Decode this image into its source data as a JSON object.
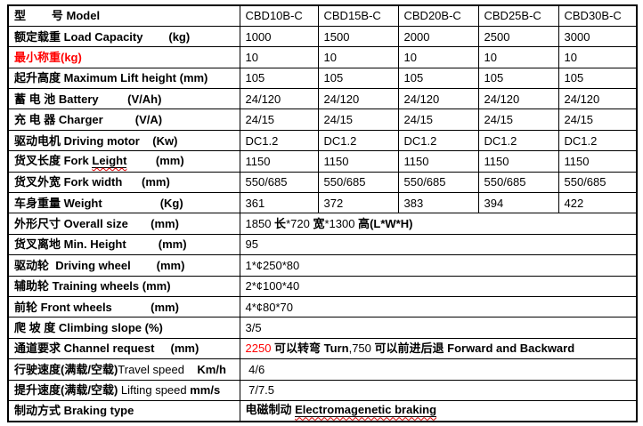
{
  "colors": {
    "accent_red": "#ff0000",
    "squiggle_red": "#e00000",
    "border": "#000000",
    "text": "#000000",
    "background": "#ffffff"
  },
  "table": {
    "rows": [
      {
        "label": [
          {
            "t": "型        号 Model",
            "b": 1
          }
        ],
        "values": [
          "CBD10B-C",
          "CBD15B-C",
          "CBD20B-C",
          "CBD25B-C",
          "CBD30B-C"
        ]
      },
      {
        "label": [
          {
            "t": "额定载重 Load Capacity        (kg)",
            "b": 1
          }
        ],
        "values": [
          "1000",
          "1500",
          "2000",
          "2500",
          "3000"
        ]
      },
      {
        "label": [
          {
            "t": "最小称重(kg)",
            "b": 1,
            "c": "red"
          }
        ],
        "values": [
          "10",
          "10",
          "10",
          "10",
          "10"
        ]
      },
      {
        "label": [
          {
            "t": "起升高度 Maximum Lift height (mm)",
            "b": 1
          }
        ],
        "values": [
          "105",
          "105",
          "105",
          "105",
          "105"
        ]
      },
      {
        "label": [
          {
            "t": "蓄 电 池 Battery         (V/Ah)",
            "b": 1
          }
        ],
        "values": [
          "24/120",
          "24/120",
          "24/120",
          "24/120",
          "24/120"
        ]
      },
      {
        "label": [
          {
            "t": "充 电 器 Charger          (V/A)",
            "b": 1
          }
        ],
        "values": [
          "24/15",
          "24/15",
          "24/15",
          "24/15",
          "24/15"
        ]
      },
      {
        "label": [
          {
            "t": "驱动电机 Driving motor    (Kw)",
            "b": 1
          }
        ],
        "values": [
          "DC1.2",
          "DC1.2",
          "DC1.2",
          "DC1.2",
          "DC1.2"
        ]
      },
      {
        "label": [
          {
            "t": "货叉长度 Fork ",
            "b": 1
          },
          {
            "t": "Leight",
            "b": 1,
            "u": 1
          },
          {
            "t": "         (mm)",
            "b": 1
          }
        ],
        "values": [
          "1150",
          "1150",
          "1150",
          "1150",
          "1150"
        ]
      },
      {
        "label": [
          {
            "t": "货叉外宽 Fork width      (mm)",
            "b": 1
          }
        ],
        "values": [
          "550/685",
          "550/685",
          "550/685",
          "550/685",
          "550/685"
        ]
      },
      {
        "label": [
          {
            "t": "车身重量 Weight                  (Kg)",
            "b": 1
          }
        ],
        "values": [
          "361",
          "372",
          "383",
          "394",
          "422"
        ]
      },
      {
        "label": [
          {
            "t": "外形尺寸 Overall size       (mm)",
            "b": 1
          }
        ],
        "merged": [
          {
            "t": "1850 ",
            "b": 0
          },
          {
            "t": "长",
            "b": 1
          },
          {
            "t": "*720 ",
            "b": 0
          },
          {
            "t": "宽",
            "b": 1
          },
          {
            "t": "*1300 ",
            "b": 0
          },
          {
            "t": "高",
            "b": 1
          },
          {
            "t": "(L*W*H)",
            "b": 1
          }
        ]
      },
      {
        "label": [
          {
            "t": "货叉离地 Min. Height          (mm)",
            "b": 1
          }
        ],
        "merged": [
          {
            "t": "95",
            "b": 0
          }
        ]
      },
      {
        "label": [
          {
            "t": "驱动轮  Driving wheel        (mm)",
            "b": 1
          }
        ],
        "merged": [
          {
            "t": "1*¢250*80",
            "b": 0
          }
        ]
      },
      {
        "label": [
          {
            "t": "辅助轮 Training wheels (mm)",
            "b": 1
          }
        ],
        "merged": [
          {
            "t": "2*¢100*40",
            "b": 0
          }
        ]
      },
      {
        "label": [
          {
            "t": "前轮 Front wheels            (mm)",
            "b": 1
          }
        ],
        "merged": [
          {
            "t": "4*¢80*70",
            "b": 0
          }
        ]
      },
      {
        "label": [
          {
            "t": "爬 坡 度 Climbing slope (%)",
            "b": 1
          }
        ],
        "merged": [
          {
            "t": "3/5",
            "b": 0
          }
        ]
      },
      {
        "label": [
          {
            "t": "通道要求 Channel request     (mm)",
            "b": 1
          }
        ],
        "merged": [
          {
            "t": "2250",
            "b": 0,
            "c": "red"
          },
          {
            "t": " 可以转弯 ",
            "b": 1
          },
          {
            "t": "Turn",
            "b": 1
          },
          {
            "t": ",750 ",
            "b": 0
          },
          {
            "t": "可以前进后退 ",
            "b": 1
          },
          {
            "t": "Forward and Backward",
            "b": 1
          }
        ]
      },
      {
        "label": [
          {
            "t": "行驶速度(满载/空载)",
            "b": 1
          },
          {
            "t": "Travel speed",
            "b": 0
          },
          {
            "t": "    Km/h",
            "b": 1
          }
        ],
        "merged": [
          {
            "t": " 4/6",
            "b": 0
          }
        ]
      },
      {
        "label": [
          {
            "t": "提升速度(满载/空载) ",
            "b": 1
          },
          {
            "t": "Lifting speed ",
            "b": 0
          },
          {
            "t": "mm/s",
            "b": 1
          }
        ],
        "merged": [
          {
            "t": " 7/7.5",
            "b": 0
          }
        ]
      },
      {
        "label": [
          {
            "t": "制动方式 Braking type",
            "b": 1
          }
        ],
        "merged": [
          {
            "t": "电磁制动 ",
            "b": 1
          },
          {
            "t": "Electromagenetic braking",
            "b": 1,
            "u": 1
          }
        ]
      }
    ]
  }
}
